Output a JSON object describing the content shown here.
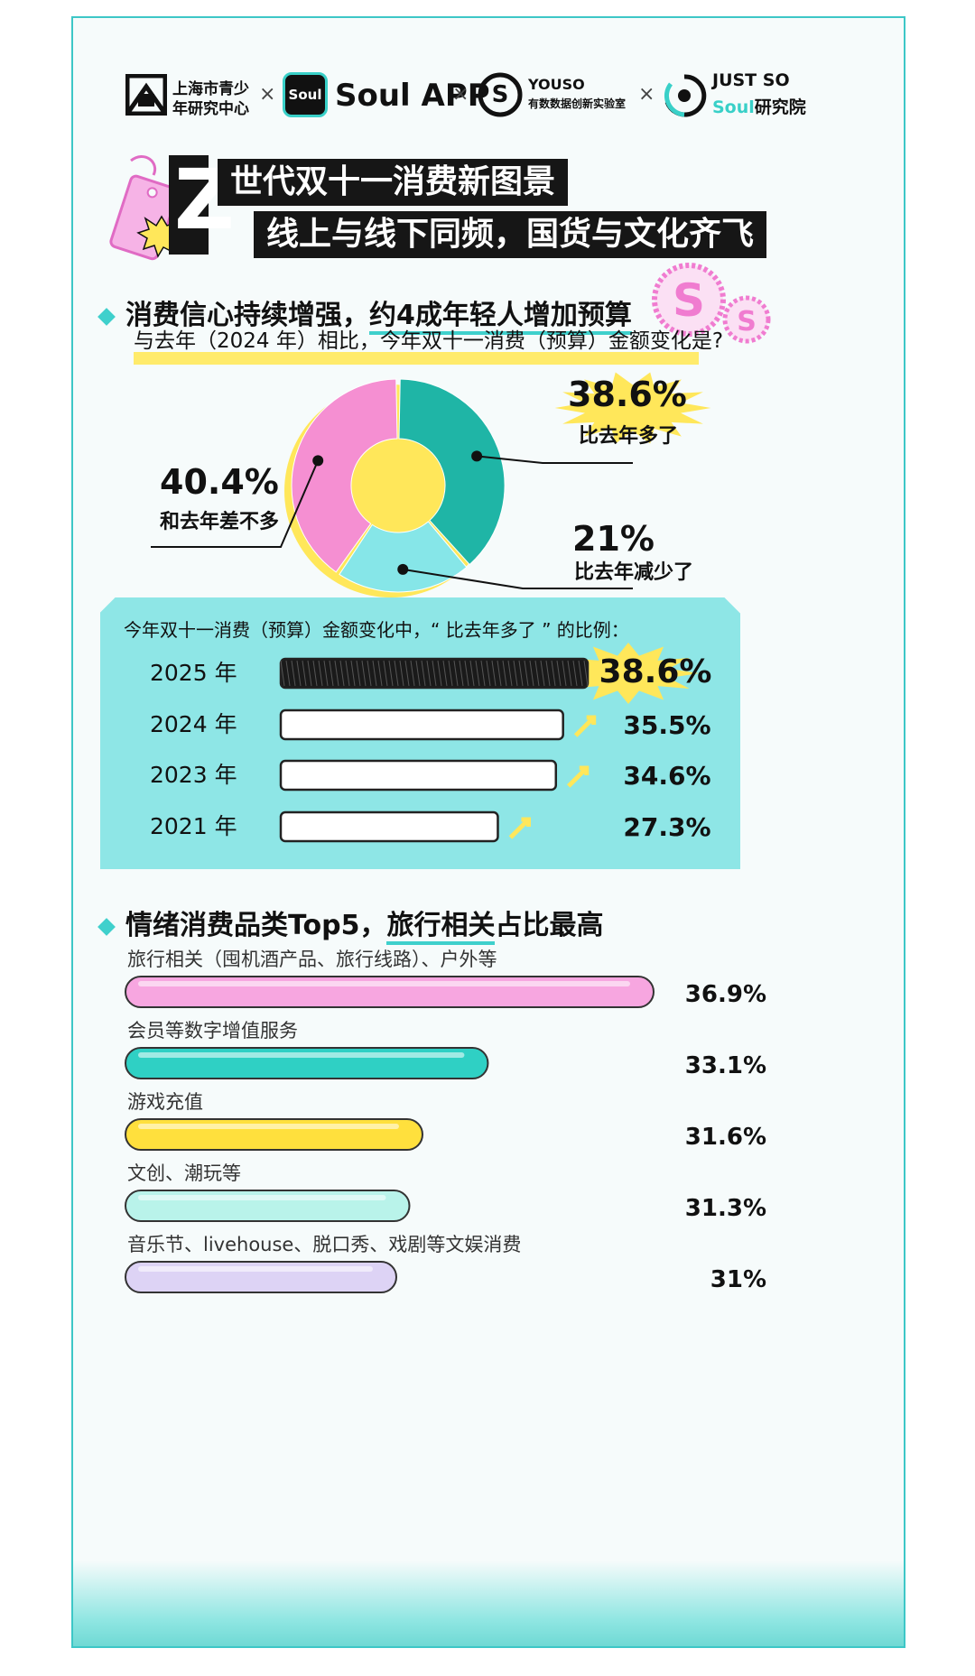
{
  "logos": [
    {
      "name": "上海市青少年研究中心",
      "line1": "上海市青少",
      "line2": "年研究中心"
    },
    {
      "name": "Soul APP",
      "badge": "Soul",
      "text": "Soul APP"
    },
    {
      "name": "YOUSO",
      "line1": "YOUSO",
      "line2": "有数数据创新实验室"
    },
    {
      "name": "JUST SO Soul研究院",
      "line1": "JUST SO",
      "line2a": "Soul",
      "line2b": "研究院"
    }
  ],
  "separator": "×",
  "title": {
    "big_letter": "Z",
    "line1": "世代双十一消费新图景",
    "line2": "线上与线下同频，国货与文化齐飞"
  },
  "section1": {
    "heading_plain": "消费信心持续增强，",
    "heading_emph": "约4成年轻人增加预算",
    "question": "与去年（2024 年）相比，今年双十一消费（预算）金额变化是?"
  },
  "donut": {
    "more": {
      "pct": "38.6%",
      "label": "比去年多了"
    },
    "less": {
      "pct": "21%",
      "label": "比去年减少了"
    },
    "same": {
      "pct": "40.4%",
      "label": "和去年差不多"
    }
  },
  "bar_panel": {
    "caption": "今年双十一消费（预算）金额变化中，“ 比去年多了 ” 的比例："
  },
  "section2": {
    "heading_plain": "情绪消费品类Top5，",
    "heading_emph": "旅行相关",
    "heading_tail": "占比最高"
  },
  "colors": {
    "teal": "#1fb5a6",
    "light_teal": "#86e6e8",
    "pink": "#f58fd2",
    "yellow": "#ffe75a",
    "lavender": "#ddd3f5"
  },
  "chart_data": [
    {
      "type": "pie",
      "title": "与去年（2024 年）相比，今年双十一消费（预算）金额变化是?",
      "categories": [
        "比去年多了",
        "比去年减少了",
        "和去年差不多"
      ],
      "values": [
        38.6,
        21,
        40.4
      ],
      "colors": [
        "#1fb5a6",
        "#86e6e8",
        "#f58fd2"
      ],
      "donut": true
    },
    {
      "type": "bar",
      "orientation": "horizontal",
      "title": "今年双十一消费（预算）金额变化中，“ 比去年多了 ” 的比例：",
      "categories": [
        "2025 年",
        "2024 年",
        "2023 年",
        "2021 年"
      ],
      "values": [
        38.6,
        35.5,
        34.6,
        27.3
      ],
      "labels": [
        "38.6%",
        "35.5%",
        "34.6%",
        "27.3%"
      ]
    },
    {
      "type": "bar",
      "orientation": "horizontal",
      "title": "情绪消费品类Top5，旅行相关占比最高",
      "categories": [
        "旅行相关（囤机酒产品、旅行线路）、户外等",
        "会员等数字增值服务",
        "游戏充值",
        "文创、潮玩等",
        "音乐节、livehouse、脱口秀、戏剧等文娱消费"
      ],
      "values": [
        36.9,
        33.1,
        31.6,
        31.3,
        31
      ],
      "labels": [
        "36.9%",
        "33.1%",
        "31.6%",
        "31.3%",
        "31%"
      ],
      "colors": [
        "#f7a6e0",
        "#2fd0c4",
        "#ffe03d",
        "#b9f3ea",
        "#ddd3f5"
      ]
    }
  ]
}
